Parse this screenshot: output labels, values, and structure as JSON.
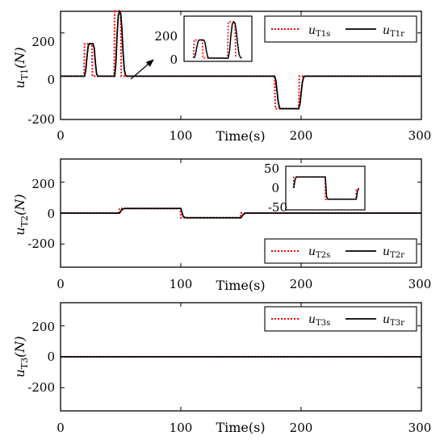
{
  "colors": {
    "reference": "#ff0000",
    "response": "#000000",
    "axis": "#000000"
  },
  "chart_data": [
    {
      "type": "line",
      "xlabel": "Time(s)",
      "ylabel_main": "u",
      "ylabel_sub": "T1",
      "ylabel_tail": "(N)",
      "xlim": [
        0,
        300
      ],
      "ylim": [
        -200,
        300
      ],
      "xticks": [
        "0",
        "100",
        "200",
        "300"
      ],
      "yticks": [
        "-200",
        "0",
        "200"
      ],
      "yticks_values": [
        -200,
        0,
        200
      ],
      "legend_position": "top-right",
      "series": [
        {
          "legend_main": "u",
          "legend_sub": "T1s",
          "style": "dotted",
          "color": "#ff0000",
          "x": [
            0,
            19.5,
            20,
            26,
            26.5,
            44.5,
            45,
            50,
            50.5,
            178,
            178.5,
            198,
            198.5,
            300
          ],
          "y": [
            0,
            0,
            150,
            150,
            0,
            0,
            300,
            300,
            0,
            0,
            -150,
            -150,
            0,
            0
          ]
        },
        {
          "legend_main": "u",
          "legend_sub": "T1r",
          "style": "solid",
          "color": "#000000",
          "x": [
            0,
            20,
            21,
            22,
            23,
            24,
            27,
            28,
            29,
            30,
            31,
            45,
            46,
            47,
            48,
            49,
            50,
            51,
            52,
            53,
            54,
            55,
            178,
            179,
            180,
            181,
            182,
            183,
            198,
            199,
            200,
            201,
            202,
            203,
            300
          ],
          "y": [
            0,
            0,
            30,
            90,
            140,
            150,
            150,
            130,
            60,
            10,
            0,
            0,
            60,
            190,
            280,
            300,
            290,
            220,
            110,
            30,
            5,
            0,
            0,
            -20,
            -70,
            -120,
            -145,
            -150,
            -150,
            -130,
            -80,
            -30,
            -5,
            0,
            0
          ]
        }
      ],
      "inset": {
        "xlim": [
          15,
          60
        ],
        "ylim": [
          0,
          320
        ],
        "yticks": [
          "0",
          "200"
        ],
        "yticks_values": [
          0,
          200
        ]
      }
    },
    {
      "type": "line",
      "xlabel": "Time(s)",
      "ylabel_main": "u",
      "ylabel_sub": "T2",
      "ylabel_tail": "(N)",
      "xlim": [
        0,
        300
      ],
      "ylim": [
        -350,
        350
      ],
      "xticks": [
        "0",
        "100",
        "200",
        "300"
      ],
      "yticks": [
        "-200",
        "0",
        "200"
      ],
      "yticks_values": [
        -200,
        0,
        200
      ],
      "legend_position": "bottom-right",
      "series": [
        {
          "legend_main": "u",
          "legend_sub": "T2s",
          "style": "dotted",
          "color": "#ff0000",
          "x": [
            0,
            48.5,
            49,
            99.5,
            100,
            149.5,
            150,
            300
          ],
          "y": [
            0,
            0,
            30,
            30,
            -30,
            -30,
            0,
            0
          ]
        },
        {
          "legend_main": "u",
          "legend_sub": "T2r",
          "style": "solid",
          "color": "#000000",
          "x": [
            0,
            49,
            51,
            53,
            100,
            102,
            104,
            150,
            152,
            154,
            300
          ],
          "y": [
            0,
            0,
            22,
            30,
            30,
            -22,
            -30,
            -30,
            -8,
            0,
            0
          ]
        }
      ],
      "inset": {
        "xlim": [
          40,
          160
        ],
        "ylim": [
          -50,
          50
        ],
        "yticks": [
          "-50",
          "0",
          "50"
        ],
        "yticks_values": [
          -50,
          0,
          50
        ]
      }
    },
    {
      "type": "line",
      "xlabel": "Time(s)",
      "ylabel_main": "u",
      "ylabel_sub": "T3",
      "ylabel_tail": "(N)",
      "xlim": [
        0,
        300
      ],
      "ylim": [
        -350,
        350
      ],
      "xticks": [
        "0",
        "100",
        "200",
        "300"
      ],
      "yticks": [
        "-200",
        "0",
        "200"
      ],
      "yticks_values": [
        -200,
        0,
        200
      ],
      "legend_position": "top-right",
      "series": [
        {
          "legend_main": "u",
          "legend_sub": "T3s",
          "style": "dotted",
          "color": "#ff0000",
          "x": [
            0,
            300
          ],
          "y": [
            0,
            0
          ]
        },
        {
          "legend_main": "u",
          "legend_sub": "T3r",
          "style": "solid",
          "color": "#000000",
          "x": [
            0,
            300
          ],
          "y": [
            0,
            0
          ]
        }
      ]
    }
  ]
}
